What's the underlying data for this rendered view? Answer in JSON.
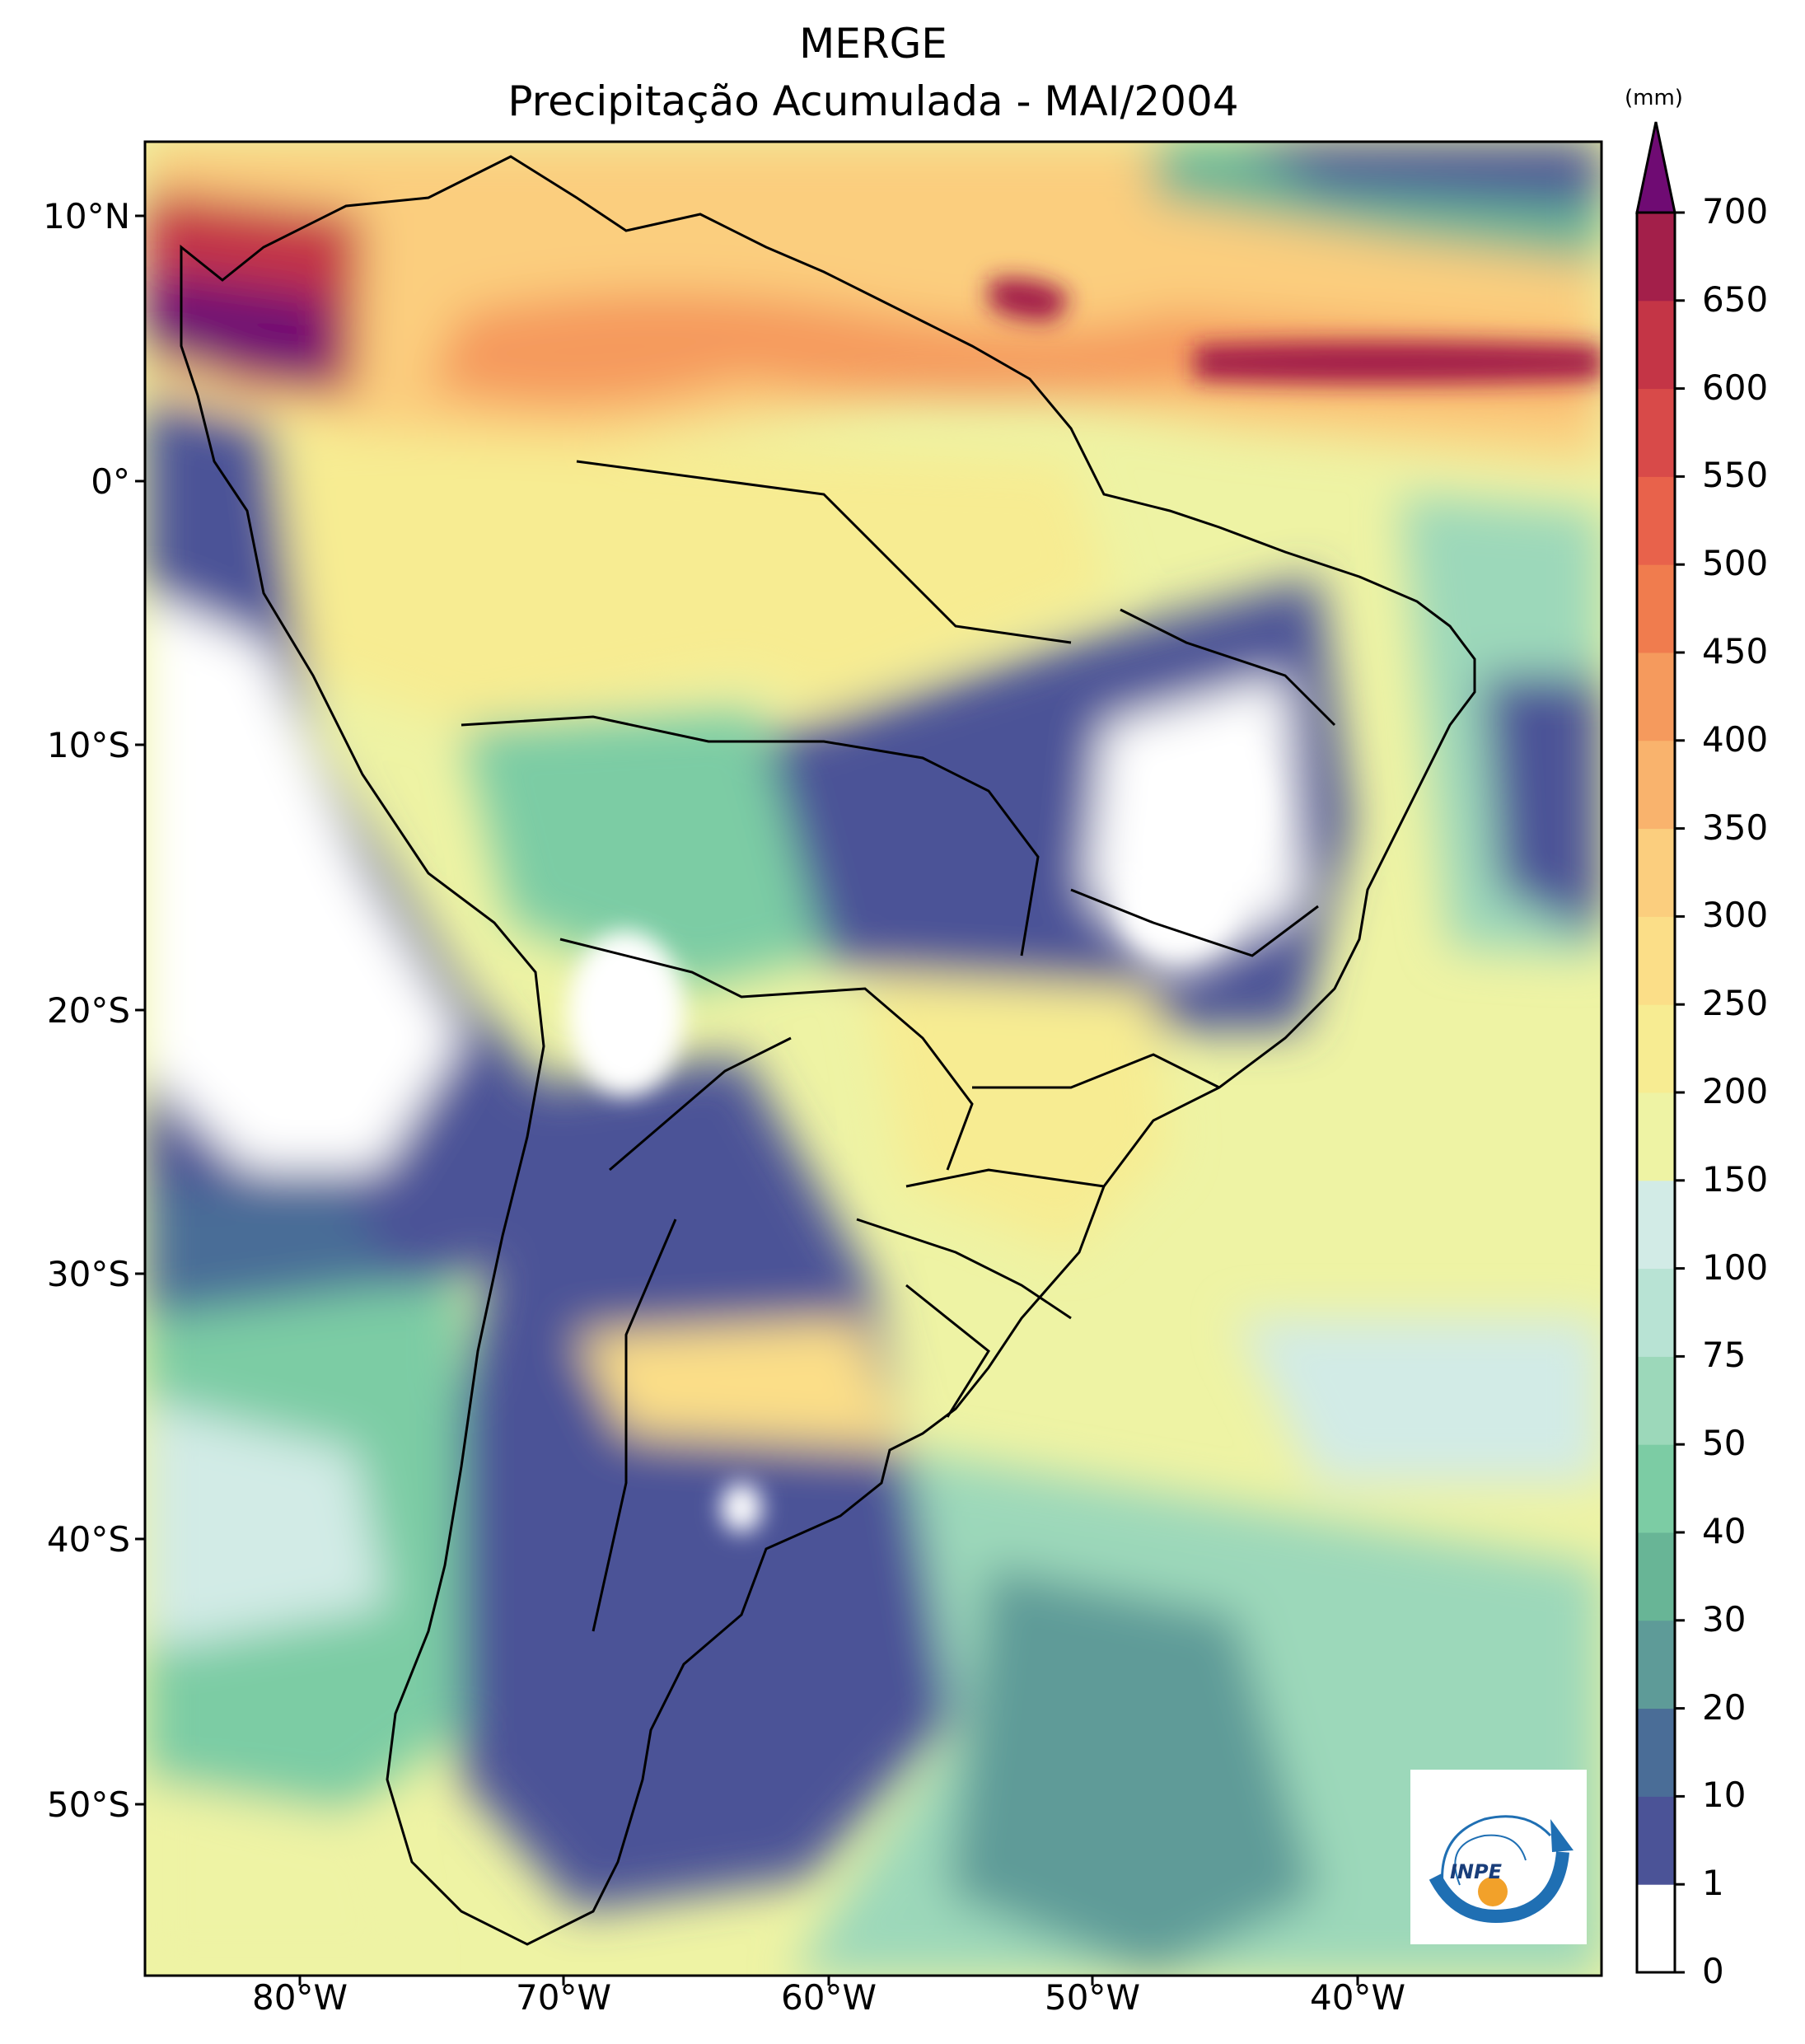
{
  "title": "MERGE",
  "subtitle": "Precipitação Acumulada - MAI/2004",
  "colorbar": {
    "unit": "(mm)",
    "levels": [
      "0",
      "1",
      "10",
      "20",
      "30",
      "40",
      "50",
      "75",
      "100",
      "150",
      "200",
      "250",
      "300",
      "350",
      "400",
      "450",
      "500",
      "550",
      "600",
      "650",
      "700"
    ],
    "colors": [
      "#ffffff",
      "#4b5397",
      "#4a6d97",
      "#5e9b98",
      "#68b596",
      "#7ccca4",
      "#9cd8ba",
      "#b8e3d4",
      "#d2ebe6",
      "#eef3a4",
      "#f7ec92",
      "#fbde88",
      "#fbce7e",
      "#f9b36d",
      "#f59a5d",
      "#f07c4e",
      "#e8624b",
      "#d84a49",
      "#c43546",
      "#a31f4a"
    ],
    "extend_color": "#6f0b73"
  },
  "axes": {
    "lat_labels": [
      "10°N",
      "0°",
      "10°S",
      "20°S",
      "30°S",
      "40°S",
      "50°S"
    ],
    "lon_labels": [
      "80°W",
      "70°W",
      "60°W",
      "50°W",
      "40°W"
    ]
  },
  "logo": {
    "text": "INPE"
  }
}
